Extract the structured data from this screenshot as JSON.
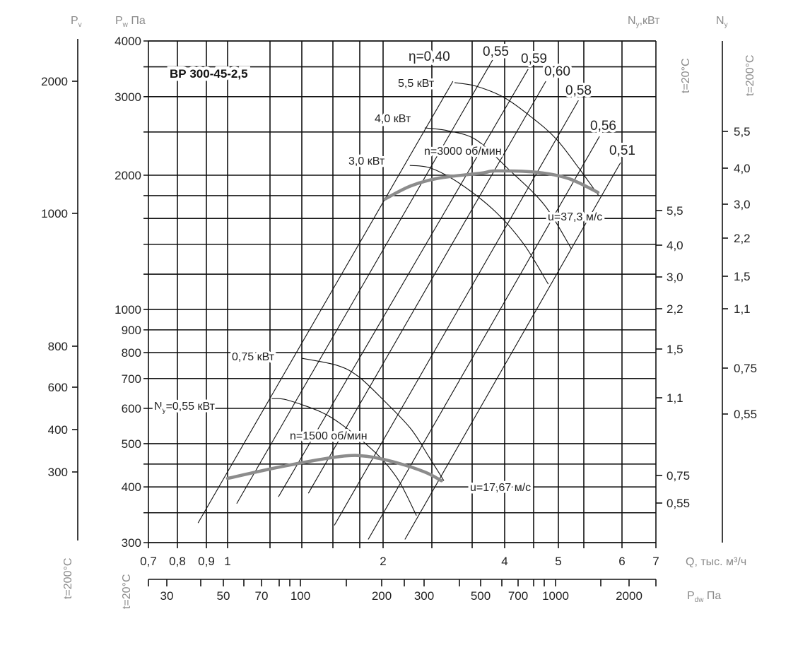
{
  "chart_data": {
    "type": "line",
    "title": "ВР 300-45-2,5",
    "grid": true,
    "x_axis": {
      "label": "Q, тыс. м³/ч",
      "scale": "log",
      "range": [
        0.7,
        7
      ],
      "tick_values": [
        0.7,
        0.8,
        0.9,
        1,
        2,
        4,
        5,
        6,
        7
      ],
      "tick_labels": [
        "0,7",
        "0,8",
        "0,9",
        "1",
        "2",
        "4",
        "5",
        "6",
        "7"
      ]
    },
    "y_axis": {
      "label_main": "P",
      "label_sub": "w",
      "label_unit": " Па",
      "scale": "log",
      "range": [
        300,
        4000
      ],
      "tick_values": [
        4000,
        3000,
        2000,
        1000,
        900,
        800,
        700,
        600,
        500,
        400,
        300
      ],
      "tick_labels": [
        "4000",
        "3000",
        "2000",
        "1000",
        "900",
        "800",
        "700",
        "600",
        "500",
        "400",
        "300"
      ]
    },
    "y_axis_outer": {
      "label_main": "P",
      "label_sub": "v",
      "temperature": "t=200°C",
      "tick_labels": [
        "2000",
        "1000",
        "800",
        "600",
        "400",
        "300"
      ]
    },
    "x_axis_secondary": {
      "label_main": "P",
      "label_sub": "dw",
      "label_unit": " Па",
      "temperature_outer": "t=200°C",
      "temperature_inner": "t=20°C",
      "tick_labels": [
        "30",
        "50",
        "70",
        "100",
        "200",
        "300",
        "500",
        "700",
        "1000",
        "2000"
      ]
    },
    "power_axis_inner": {
      "label_main": "N",
      "label_sub": "у",
      "label_unit": ",кВт",
      "temperature": "t=20°C",
      "tick_labels": [
        "5,5",
        "4,0",
        "3,0",
        "2,2",
        "1,5",
        "1,1",
        "0,75",
        "0,55"
      ]
    },
    "power_axis_outer": {
      "label_main": "N",
      "label_sub": "у",
      "temperature": "t=200°C",
      "tick_labels": [
        "5,5",
        "4,0",
        "3,0",
        "2,2",
        "1,5",
        "1,1",
        "0,75",
        "0,55"
      ]
    },
    "series": [
      {
        "name": "n=3000 об/мин",
        "tip_speed": "u=37,3 м/с",
        "color": "#8c8c8c",
        "points": [
          [
            2.02,
            1770
          ],
          [
            2.27,
            1893
          ],
          [
            2.58,
            1970
          ],
          [
            3.26,
            2022
          ],
          [
            3.7,
            2045
          ],
          [
            4.57,
            2030
          ],
          [
            5.2,
            1965
          ],
          [
            5.68,
            1830
          ]
        ]
      },
      {
        "name": "n=1500 об/мин",
        "tip_speed": "u=17,67 м/с",
        "color": "#8c8c8c",
        "points": [
          [
            1.0,
            418
          ],
          [
            1.28,
            445
          ],
          [
            1.65,
            468
          ],
          [
            1.87,
            468
          ],
          [
            2.13,
            453
          ],
          [
            2.42,
            432
          ],
          [
            2.61,
            413
          ]
        ]
      }
    ],
    "power_curves": [
      {
        "name": "5,5 кВт",
        "points": [
          [
            2.77,
            3226
          ],
          [
            3.11,
            3167
          ],
          [
            3.98,
            2987
          ],
          [
            4.48,
            2688
          ],
          [
            4.96,
            2408
          ],
          [
            5.42,
            2059
          ],
          [
            5.69,
            1799
          ]
        ]
      },
      {
        "name": "4,0 кВт",
        "points": [
          [
            2.42,
            2553
          ],
          [
            2.69,
            2516
          ],
          [
            3.11,
            2400
          ],
          [
            4.07,
            2059
          ],
          [
            4.71,
            1715
          ],
          [
            5.25,
            1368
          ]
        ]
      },
      {
        "name": "3,0 кВт",
        "points": [
          [
            2.26,
            2104
          ],
          [
            2.49,
            2074
          ],
          [
            2.84,
            1914
          ],
          [
            3.7,
            1654
          ],
          [
            4.32,
            1403
          ],
          [
            4.79,
            1140
          ]
        ]
      },
      {
        "name": "0,75 кВт",
        "points": [
          [
            1.4,
            777
          ],
          [
            1.63,
            749
          ],
          [
            1.79,
            707
          ],
          [
            2.01,
            624
          ],
          [
            2.27,
            540
          ],
          [
            2.47,
            466
          ],
          [
            2.64,
            413
          ]
        ]
      },
      {
        "name_main": "N",
        "name_sub": "у",
        "name_rest": "=0,55 кВт",
        "points": [
          [
            1.21,
            631
          ],
          [
            1.3,
            627
          ],
          [
            1.52,
            589
          ],
          [
            1.67,
            550
          ],
          [
            1.84,
            502
          ],
          [
            2.01,
            456
          ],
          [
            2.16,
            409
          ],
          [
            2.33,
            345
          ]
        ]
      }
    ],
    "efficiency_lines": [
      {
        "name": "η=0,40",
        "points": [
          [
            0.87,
            332
          ],
          [
            2.75,
            3249
          ]
        ]
      },
      {
        "name": "0,55",
        "points": [
          [
            1.04,
            367
          ],
          [
            3.63,
            3662
          ]
        ]
      },
      {
        "name": "0,59",
        "points": [
          [
            1.25,
            380
          ],
          [
            4.4,
            3458
          ]
        ]
      },
      {
        "name": "0,60",
        "points": [
          [
            1.44,
            387
          ],
          [
            4.74,
            3249
          ]
        ]
      },
      {
        "name": "0,58",
        "points": [
          [
            1.61,
            328
          ],
          [
            5.39,
            2943
          ]
        ]
      },
      {
        "name": "0,56",
        "points": [
          [
            1.87,
            305
          ],
          [
            5.7,
            2444
          ]
        ]
      },
      {
        "name": "0,51",
        "points": [
          [
            2.21,
            305
          ],
          [
            5.98,
            2134
          ]
        ]
      }
    ]
  }
}
